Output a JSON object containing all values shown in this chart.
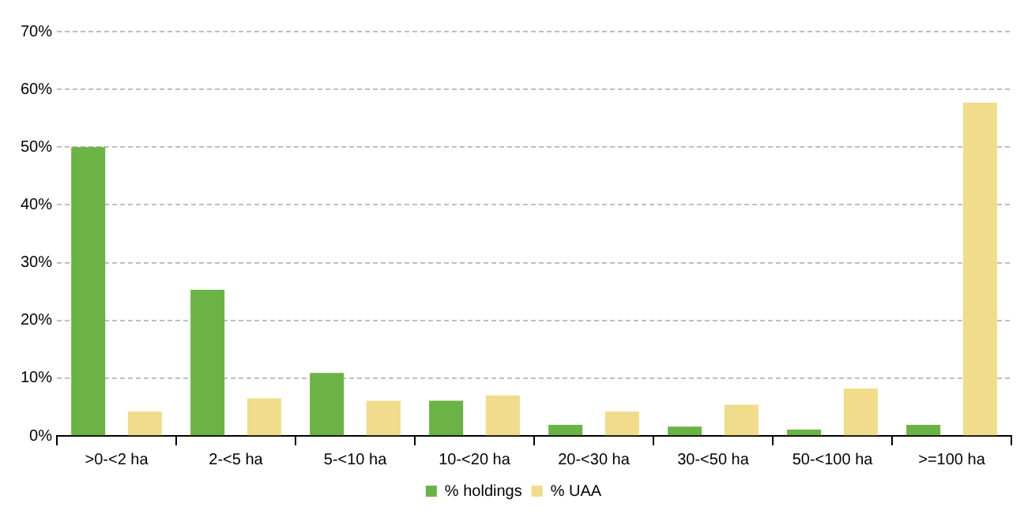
{
  "chart_data": {
    "type": "bar",
    "categories": [
      ">0-<2 ha",
      "2-<5 ha",
      "5-<10 ha",
      "10-<20 ha",
      "20-<30 ha",
      "30-<50 ha",
      "50-<100 ha",
      ">=100 ha"
    ],
    "series": [
      {
        "name": "% holdings",
        "color": "#6ab344",
        "values": [
          50.0,
          25.3,
          10.9,
          6.1,
          1.9,
          1.6,
          1.1,
          1.9
        ]
      },
      {
        "name": "% UAA",
        "color": "#f0dc8a",
        "values": [
          4.2,
          6.5,
          6.1,
          7.0,
          4.2,
          5.4,
          8.2,
          57.7
        ]
      }
    ],
    "ylim": [
      0,
      70
    ],
    "yticks": [
      {
        "value": 0,
        "label": "0%"
      },
      {
        "value": 10,
        "label": "10%"
      },
      {
        "value": 20,
        "label": "20%"
      },
      {
        "value": 30,
        "label": "30%"
      },
      {
        "value": 40,
        "label": "40%"
      },
      {
        "value": 50,
        "label": "50%"
      },
      {
        "value": 60,
        "label": "60%"
      },
      {
        "value": 70,
        "label": "70%"
      }
    ],
    "grid": "y",
    "legend": "bottom"
  }
}
